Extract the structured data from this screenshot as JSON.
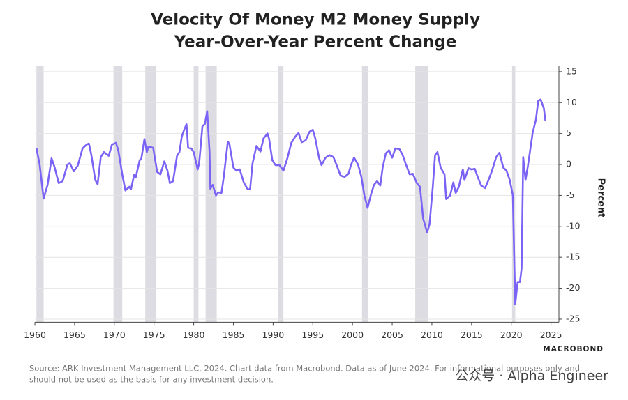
{
  "chart_data": {
    "type": "line",
    "title": [
      "Velocity Of Money M2 Money Supply",
      "Year-Over-Year Percent Change"
    ],
    "y_axis_label": "Percent",
    "source": [
      "Source: ARK Investment Management LLC, 2024. Chart data from Macrobond. Data as of June 2024. For informational purposes only and",
      "should not be used as the basis for any investment decision."
    ],
    "brand": "MACROBOND",
    "watermark": "公众号 · Alpha Engineer",
    "xlim": [
      1960,
      2026
    ],
    "ylim": [
      -25.5,
      16
    ],
    "xticks": [
      1960,
      1965,
      1970,
      1975,
      1980,
      1985,
      1990,
      1995,
      2000,
      2005,
      2010,
      2015,
      2020,
      2025
    ],
    "yticks": [
      15,
      10,
      5,
      0,
      -5,
      -10,
      -15,
      -20,
      -25
    ],
    "grid": true,
    "y_axis_side": "right",
    "shaded_color": "#dcdce2",
    "shaded_periods": [
      [
        1960.2,
        1961.1
      ],
      [
        1969.9,
        1971.0
      ],
      [
        1973.9,
        1975.3
      ],
      [
        1980.0,
        1980.6
      ],
      [
        1981.5,
        1982.9
      ],
      [
        1990.6,
        1991.3
      ],
      [
        2001.2,
        2002.0
      ],
      [
        2007.9,
        2009.5
      ],
      [
        2020.1,
        2020.5
      ]
    ],
    "series": [
      {
        "name": "Velocity of M2 YoY",
        "color": "#7b63f5",
        "x": [
          1960.2,
          1960.6,
          1961.1,
          1961.6,
          1962.1,
          1962.5,
          1963.0,
          1963.5,
          1964.1,
          1964.4,
          1964.9,
          1965.4,
          1966.0,
          1966.5,
          1966.8,
          1967.1,
          1967.6,
          1967.9,
          1968.3,
          1968.7,
          1969.3,
          1969.7,
          1970.2,
          1970.5,
          1971.0,
          1971.4,
          1971.9,
          1972.1,
          1972.5,
          1972.7,
          1973.2,
          1973.4,
          1973.8,
          1974.1,
          1974.3,
          1974.9,
          1975.4,
          1975.8,
          1976.3,
          1976.7,
          1977.0,
          1977.4,
          1977.9,
          1978.2,
          1978.5,
          1978.8,
          1979.1,
          1979.3,
          1979.7,
          1980.0,
          1980.5,
          1980.7,
          1981.1,
          1981.4,
          1981.7,
          1982.0,
          1982.1,
          1982.4,
          1982.8,
          1983.1,
          1983.5,
          1983.8,
          1984.3,
          1984.5,
          1985.0,
          1985.4,
          1985.8,
          1986.3,
          1986.8,
          1987.1,
          1987.4,
          1987.9,
          1988.4,
          1988.8,
          1989.3,
          1989.5,
          1989.9,
          1990.3,
          1990.8,
          1991.3,
          1991.8,
          1992.3,
          1992.8,
          1993.2,
          1993.6,
          1994.1,
          1994.6,
          1995.0,
          1995.3,
          1995.8,
          1996.1,
          1996.6,
          1997.1,
          1997.6,
          1998.0,
          1998.5,
          1999.0,
          1999.5,
          1999.8,
          2000.2,
          2000.7,
          2001.1,
          2001.5,
          2001.9,
          2002.3,
          2002.7,
          2003.1,
          2003.5,
          2003.8,
          2004.2,
          2004.6,
          2005.0,
          2005.4,
          2005.9,
          2006.3,
          2006.7,
          2007.2,
          2007.6,
          2008.1,
          2008.5,
          2008.9,
          2009.4,
          2009.7,
          2010.1,
          2010.4,
          2010.7,
          2011.1,
          2011.6,
          2011.8,
          2012.3,
          2012.7,
          2013.0,
          2013.4,
          2013.9,
          2014.1,
          2014.6,
          2015.0,
          2015.4,
          2015.8,
          2016.2,
          2016.7,
          2017.2,
          2017.6,
          2018.1,
          2018.5,
          2019.0,
          2019.4,
          2019.8,
          2020.2,
          2020.5,
          2020.8,
          2021.1,
          2021.3,
          2021.5,
          2021.8,
          2022.1,
          2022.7,
          2023.1,
          2023.4,
          2023.7,
          2024.1,
          2024.3
        ],
        "values": [
          2.6,
          0,
          -5.5,
          -3.3,
          1,
          -0.5,
          -3,
          -2.7,
          0,
          0.2,
          -1.1,
          -0.2,
          2.6,
          3.2,
          3.4,
          1.6,
          -2.5,
          -3.2,
          1.2,
          2,
          1.4,
          3.2,
          3.5,
          2.3,
          -1.6,
          -4.2,
          -3.6,
          -4,
          -1.7,
          -2.1,
          0.7,
          0.9,
          4.1,
          2,
          2.9,
          2.7,
          -1.2,
          -1.6,
          0.5,
          -1,
          -3,
          -2.7,
          1.4,
          2,
          4.5,
          5.6,
          6.5,
          2.7,
          2.6,
          2,
          -0.8,
          0.3,
          6.2,
          6.5,
          8.6,
          2,
          -3.9,
          -3.3,
          -5,
          -4.5,
          -4.6,
          -1.9,
          3.7,
          3.3,
          -0.5,
          -1,
          -0.8,
          -2.9,
          -4,
          -4,
          0.1,
          3,
          2.1,
          4.2,
          5,
          4.1,
          0.7,
          -0.1,
          -0.1,
          -1,
          1,
          3.5,
          4.5,
          5.1,
          3.6,
          3.9,
          5.3,
          5.6,
          4.3,
          1,
          -0.1,
          1.1,
          1.5,
          1.2,
          -0.1,
          -1.8,
          -2,
          -1.5,
          -0.1,
          1.1,
          0,
          -1.9,
          -5,
          -7,
          -5,
          -3.3,
          -2.7,
          -3.4,
          -0.5,
          1.8,
          2.3,
          1.1,
          2.6,
          2.5,
          1.6,
          0.1,
          -1.6,
          -1.5,
          -3,
          -3.6,
          -8.7,
          -11,
          -9.7,
          -3.8,
          1.5,
          2,
          -0.5,
          -1.6,
          -5.6,
          -5,
          -2.9,
          -4.6,
          -3.6,
          -0.8,
          -2.5,
          -0.6,
          -0.8,
          -0.7,
          -2.1,
          -3.4,
          -3.8,
          -2.3,
          -0.9,
          1.2,
          1.9,
          -0.5,
          -1,
          -2.5,
          -5,
          -22.6,
          -19,
          -19,
          -16.8,
          1.2,
          -2.5,
          -0.2,
          5.2,
          7.2,
          10.3,
          10.5,
          9.1,
          7
        ]
      }
    ]
  }
}
